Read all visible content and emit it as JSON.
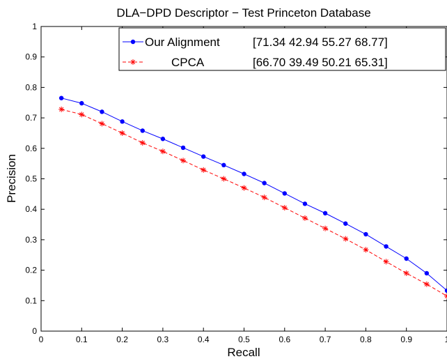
{
  "chart_data": {
    "type": "line",
    "title": "DLA−DPD Descriptor − Test Princeton Database",
    "xlabel": "Recall",
    "ylabel": "Precision",
    "xlim": [
      0,
      1
    ],
    "ylim": [
      0,
      1
    ],
    "x_ticks": [
      "0",
      "0.1",
      "0.2",
      "0.3",
      "0.4",
      "0.5",
      "0.6",
      "0.7",
      "0.8",
      "0.9",
      "1"
    ],
    "y_ticks": [
      "0",
      "0.1",
      "0.2",
      "0.3",
      "0.4",
      "0.5",
      "0.6",
      "0.7",
      "0.8",
      "0.9",
      "1"
    ],
    "grid": false,
    "legend_position": "top-right",
    "x": [
      0.05,
      0.1,
      0.15,
      0.2,
      0.25,
      0.3,
      0.35,
      0.4,
      0.45,
      0.5,
      0.55,
      0.6,
      0.65,
      0.7,
      0.75,
      0.8,
      0.85,
      0.9,
      0.95,
      1.0
    ],
    "series": [
      {
        "name": "Our Alignment",
        "legend_values": "[71.34 42.94 55.27 68.77]",
        "color": "#0000ff",
        "marker": "dot",
        "line_style": "solid",
        "values": [
          0.765,
          0.748,
          0.72,
          0.688,
          0.658,
          0.631,
          0.602,
          0.573,
          0.545,
          0.516,
          0.486,
          0.452,
          0.418,
          0.387,
          0.353,
          0.318,
          0.278,
          0.238,
          0.19,
          0.133
        ]
      },
      {
        "name": "CPCA",
        "legend_values": "[66.70 39.49 50.21 65.31]",
        "color": "#ff0000",
        "marker": "asterisk",
        "line_style": "dashed",
        "values": [
          0.728,
          0.711,
          0.681,
          0.65,
          0.618,
          0.59,
          0.56,
          0.529,
          0.5,
          0.47,
          0.439,
          0.405,
          0.371,
          0.337,
          0.303,
          0.267,
          0.228,
          0.19,
          0.154,
          0.115
        ]
      }
    ]
  }
}
